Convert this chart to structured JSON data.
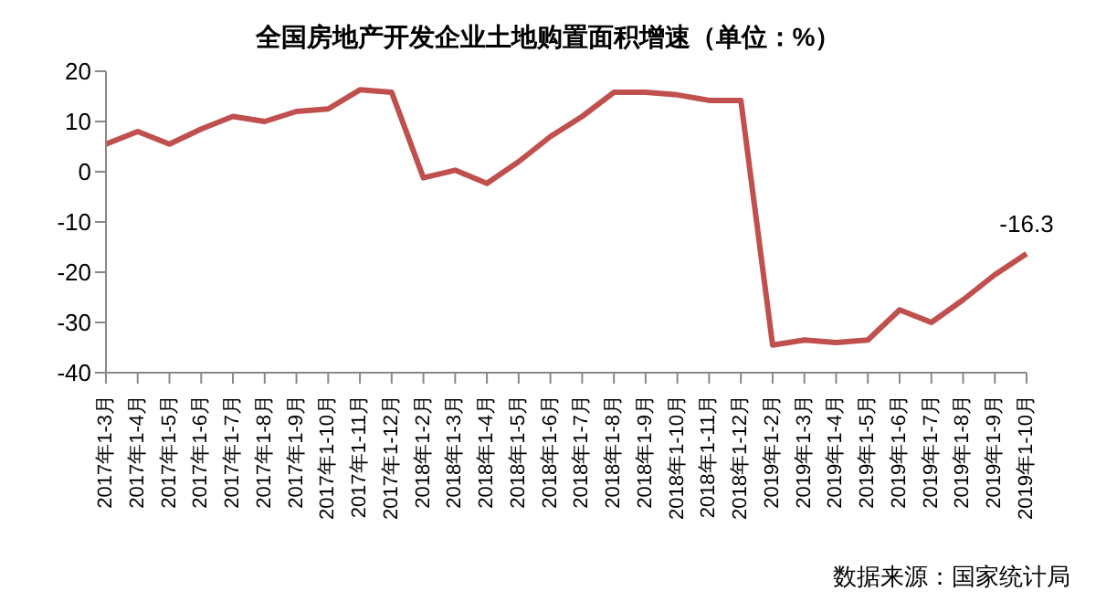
{
  "chart_data": {
    "type": "line",
    "title": "全国房地产开发企业土地购置面积增速（单位：%）",
    "categories": [
      "2017年1-3月",
      "2017年1-4月",
      "2017年1-5月",
      "2017年1-6月",
      "2017年1-7月",
      "2017年1-8月",
      "2017年1-9月",
      "2017年1-10月",
      "2017年1-11月",
      "2017年1-12月",
      "2018年1-2月",
      "2018年1-3月",
      "2018年1-4月",
      "2018年1-5月",
      "2018年1-6月",
      "2018年1-7月",
      "2018年1-8月",
      "2018年1-9月",
      "2018年1-10月",
      "2018年1-11月",
      "2018年1-12月",
      "2019年1-2月",
      "2019年1-3月",
      "2019年1-4月",
      "2019年1-5月",
      "2019年1-6月",
      "2019年1-7月",
      "2019年1-8月",
      "2019年1-9月",
      "2019年1-10月"
    ],
    "series": [
      {
        "color": "#c0504d",
        "values": [
          5.5,
          8,
          5.5,
          8.5,
          11,
          10,
          12,
          12.5,
          16.3,
          15.8,
          -1.2,
          0.3,
          -2.3,
          2,
          7,
          11,
          15.8,
          15.8,
          15.3,
          14.2,
          14.2,
          -34.5,
          -33.5,
          -34,
          -33.5,
          -27.5,
          -30,
          -25.5,
          -20.5,
          -16.3
        ],
        "value_labels": [
          null,
          null,
          null,
          null,
          null,
          null,
          null,
          null,
          null,
          null,
          null,
          null,
          null,
          null,
          null,
          null,
          null,
          null,
          null,
          null,
          null,
          null,
          null,
          null,
          null,
          null,
          null,
          null,
          null,
          "-16.3"
        ]
      }
    ],
    "ylim": [
      -40,
      20
    ],
    "yticks": [
      -40,
      -30,
      -20,
      -10,
      0,
      10,
      20
    ],
    "marker": "none",
    "line_style": "solid",
    "annotations": [
      "数据来源：国家统计局"
    ]
  }
}
